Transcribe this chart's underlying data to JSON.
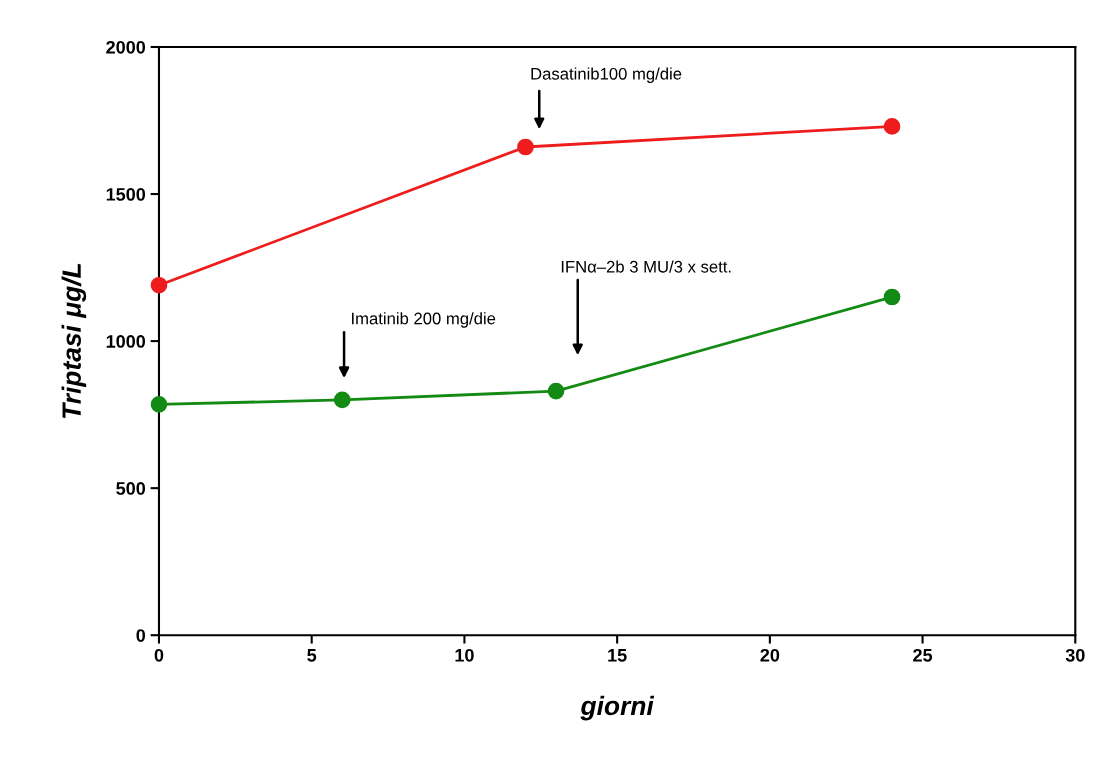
{
  "chart_data": {
    "type": "line",
    "xlabel": "giorni",
    "ylabel": "Triptasi μg/L",
    "series": [
      {
        "color": "#ee1c1c",
        "x": [
          0,
          12,
          24
        ],
        "values": [
          1190,
          1660,
          1730
        ]
      },
      {
        "color": "#138a13",
        "x": [
          0,
          6,
          13,
          24
        ],
        "values": [
          785,
          800,
          830,
          1150
        ]
      }
    ],
    "marker": "circle",
    "line_style": "solid",
    "grid": false,
    "legend": false,
    "xlim": [
      0,
      30
    ],
    "xticks": [
      0,
      5,
      10,
      15,
      20,
      25,
      30
    ],
    "ylim": [
      0,
      2000
    ],
    "yticks": [
      0,
      500,
      1000,
      1500,
      2000
    ],
    "annotations": [
      "Dasatinib100 mg/die",
      "Imatinib 200 mg/die",
      "IFNα–2b 3 MU/3 x sett."
    ]
  }
}
